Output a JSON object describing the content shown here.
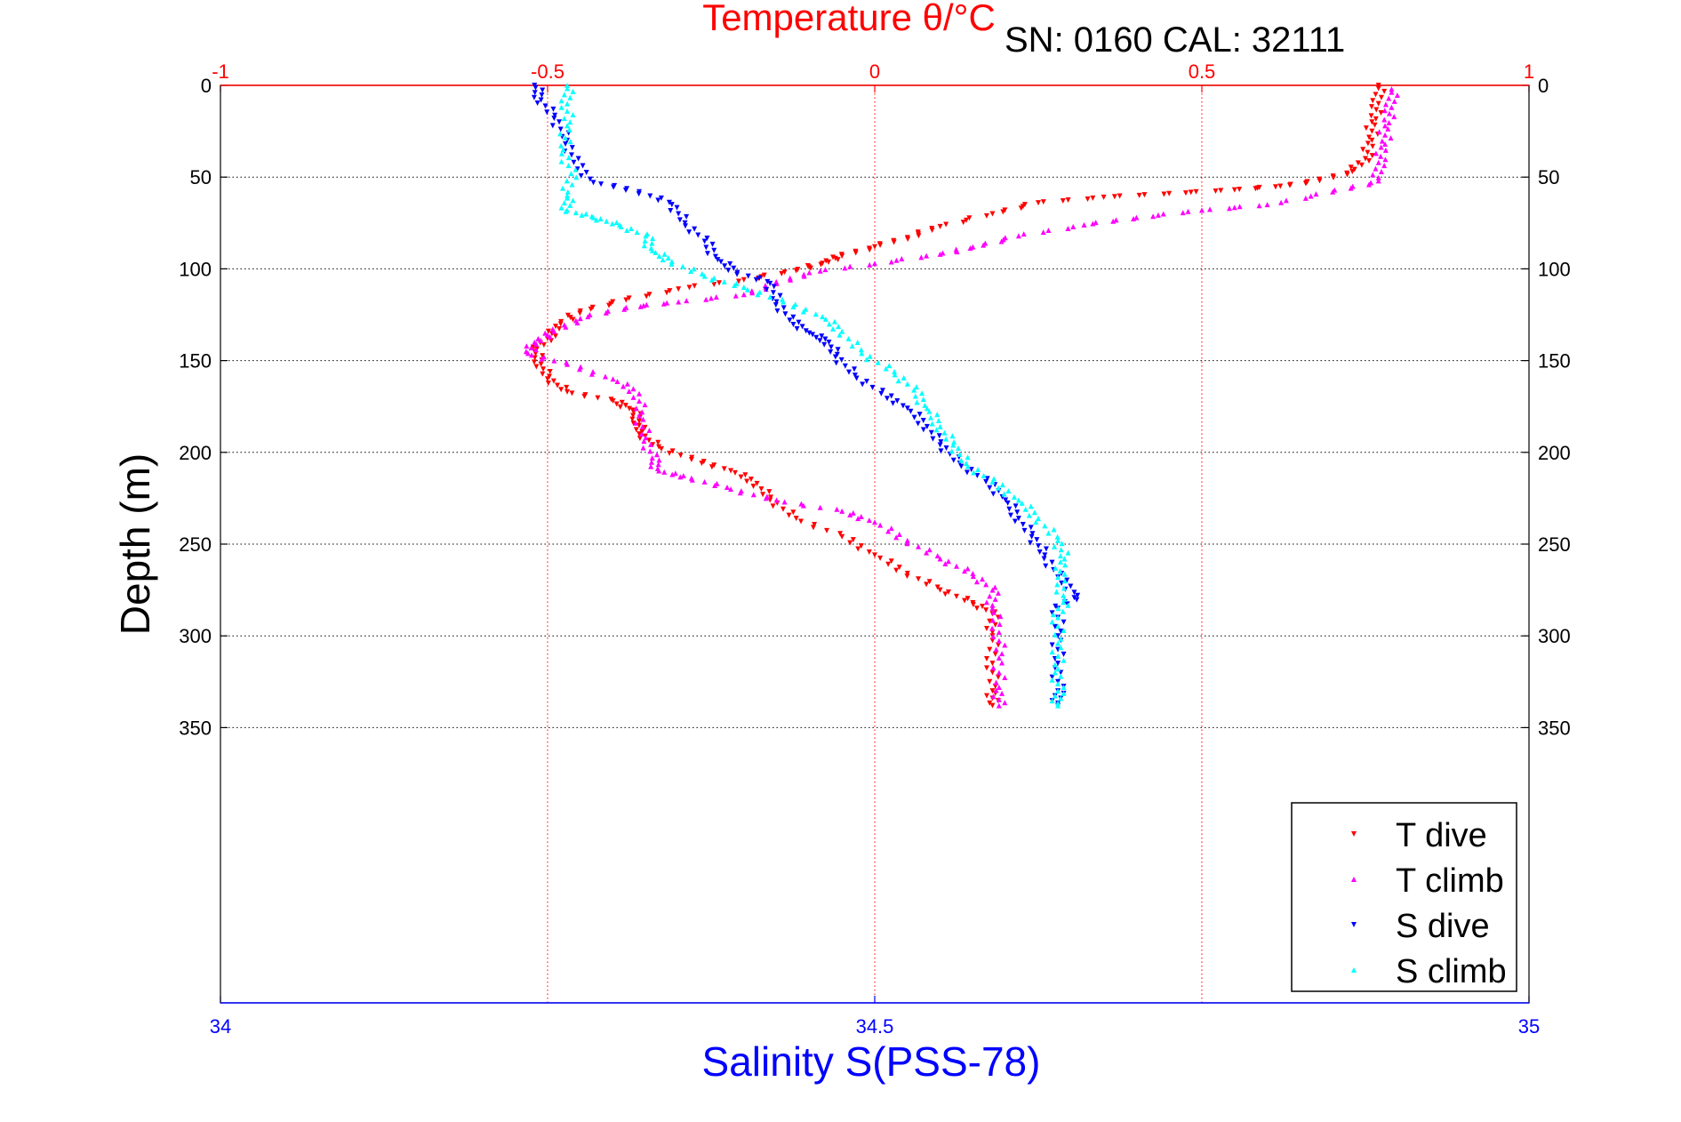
{
  "chart_data": {
    "type": "scatter",
    "title": "Temperature θ/°C",
    "subtitle": "SN: 0160  CAL: 32111",
    "top_axis": {
      "label": "Temperature θ/°C",
      "range": [
        -1,
        1
      ],
      "ticks": [
        -1,
        -0.5,
        0,
        0.5,
        1
      ],
      "tick_labels": [
        "-1",
        "-0.5",
        "0",
        "0.5",
        "1"
      ],
      "color": "#ff0000"
    },
    "bottom_axis": {
      "label": "Salinity S(PSS-78)",
      "range": [
        34,
        35
      ],
      "ticks": [
        34,
        34.5,
        35
      ],
      "tick_labels": [
        "34",
        "34.5",
        "35"
      ],
      "color": "#0000ff"
    },
    "y_axis": {
      "label": "Depth (m)",
      "range": [
        0,
        500
      ],
      "reversed": true,
      "ticks": [
        0,
        50,
        100,
        150,
        200,
        250,
        300,
        350
      ],
      "tick_labels": [
        "0",
        "50",
        "100",
        "150",
        "200",
        "250",
        "300",
        "350"
      ]
    },
    "grid": true,
    "legend_position": "bottom-right",
    "series": [
      {
        "name": "T dive",
        "axis": "top",
        "color": "#ff0000",
        "marker": "triangle-down",
        "points": [
          [
            0.77,
            0
          ],
          [
            0.77,
            10
          ],
          [
            0.76,
            20
          ],
          [
            0.76,
            30
          ],
          [
            0.75,
            40
          ],
          [
            0.73,
            47
          ],
          [
            0.68,
            52
          ],
          [
            0.62,
            55
          ],
          [
            0.55,
            57
          ],
          [
            0.45,
            59
          ],
          [
            0.35,
            61
          ],
          [
            0.25,
            64
          ],
          [
            0.18,
            70
          ],
          [
            0.1,
            77
          ],
          [
            0.05,
            83
          ],
          [
            0.0,
            88
          ],
          [
            -0.05,
            93
          ],
          [
            -0.08,
            97
          ],
          [
            -0.12,
            101
          ],
          [
            -0.2,
            106
          ],
          [
            -0.3,
            111
          ],
          [
            -0.38,
            117
          ],
          [
            -0.45,
            123
          ],
          [
            -0.48,
            130
          ],
          [
            -0.5,
            138
          ],
          [
            -0.52,
            145
          ],
          [
            -0.51,
            152
          ],
          [
            -0.5,
            160
          ],
          [
            -0.47,
            167
          ],
          [
            -0.4,
            172
          ],
          [
            -0.37,
            177
          ],
          [
            -0.36,
            183
          ],
          [
            -0.36,
            190
          ],
          [
            -0.33,
            197
          ],
          [
            -0.28,
            204
          ],
          [
            -0.22,
            210
          ],
          [
            -0.18,
            217
          ],
          [
            -0.16,
            226
          ],
          [
            -0.12,
            236
          ],
          [
            -0.05,
            246
          ],
          [
            0.0,
            256
          ],
          [
            0.05,
            266
          ],
          [
            0.1,
            275
          ],
          [
            0.15,
            282
          ],
          [
            0.18,
            288
          ],
          [
            0.18,
            300
          ],
          [
            0.18,
            315
          ],
          [
            0.18,
            330
          ],
          [
            0.18,
            338
          ]
        ]
      },
      {
        "name": "T climb",
        "axis": "top",
        "color": "#ff00ff",
        "marker": "triangle-up",
        "points": [
          [
            0.79,
            2
          ],
          [
            0.79,
            12
          ],
          [
            0.78,
            22
          ],
          [
            0.78,
            32
          ],
          [
            0.77,
            42
          ],
          [
            0.77,
            52
          ],
          [
            0.7,
            58
          ],
          [
            0.6,
            65
          ],
          [
            0.5,
            68
          ],
          [
            0.4,
            72
          ],
          [
            0.32,
            76
          ],
          [
            0.22,
            82
          ],
          [
            0.15,
            88
          ],
          [
            0.1,
            92
          ],
          [
            0.0,
            97
          ],
          [
            -0.1,
            102
          ],
          [
            -0.15,
            108
          ],
          [
            -0.2,
            114
          ],
          [
            -0.3,
            118
          ],
          [
            -0.38,
            121
          ],
          [
            -0.45,
            127
          ],
          [
            -0.49,
            134
          ],
          [
            -0.52,
            140
          ],
          [
            -0.53,
            146
          ],
          [
            -0.47,
            152
          ],
          [
            -0.4,
            160
          ],
          [
            -0.36,
            168
          ],
          [
            -0.36,
            180
          ],
          [
            -0.35,
            192
          ],
          [
            -0.34,
            203
          ],
          [
            -0.33,
            210
          ],
          [
            -0.28,
            214
          ],
          [
            -0.22,
            220
          ],
          [
            -0.15,
            226
          ],
          [
            -0.05,
            232
          ],
          [
            0.0,
            238
          ],
          [
            0.05,
            248
          ],
          [
            0.1,
            258
          ],
          [
            0.15,
            266
          ],
          [
            0.18,
            275
          ],
          [
            0.18,
            285
          ],
          [
            0.19,
            298
          ],
          [
            0.19,
            312
          ],
          [
            0.19,
            328
          ],
          [
            0.19,
            338
          ]
        ]
      },
      {
        "name": "S dive",
        "axis": "bottom",
        "color": "#0000ff",
        "marker": "triangle-down",
        "points": [
          [
            34.24,
            0
          ],
          [
            34.245,
            8
          ],
          [
            34.255,
            18
          ],
          [
            34.265,
            30
          ],
          [
            34.27,
            42
          ],
          [
            34.285,
            53
          ],
          [
            34.32,
            58
          ],
          [
            34.345,
            65
          ],
          [
            34.355,
            75
          ],
          [
            34.37,
            85
          ],
          [
            34.38,
            95
          ],
          [
            34.395,
            102
          ],
          [
            34.42,
            108
          ],
          [
            34.425,
            118
          ],
          [
            34.435,
            128
          ],
          [
            34.45,
            135
          ],
          [
            34.465,
            140
          ],
          [
            34.47,
            148
          ],
          [
            34.485,
            158
          ],
          [
            34.505,
            168
          ],
          [
            34.525,
            176
          ],
          [
            34.54,
            186
          ],
          [
            34.55,
            196
          ],
          [
            34.565,
            206
          ],
          [
            34.585,
            216
          ],
          [
            34.6,
            226
          ],
          [
            34.61,
            236
          ],
          [
            34.62,
            246
          ],
          [
            34.63,
            256
          ],
          [
            34.64,
            268
          ],
          [
            34.655,
            278
          ],
          [
            34.64,
            285
          ],
          [
            34.64,
            300
          ],
          [
            34.64,
            315
          ],
          [
            34.64,
            330
          ],
          [
            34.64,
            338
          ]
        ]
      },
      {
        "name": "S climb",
        "axis": "bottom",
        "color": "#00ffff",
        "marker": "triangle-up",
        "points": [
          [
            34.265,
            0
          ],
          [
            34.265,
            10
          ],
          [
            34.265,
            22
          ],
          [
            34.262,
            35
          ],
          [
            34.268,
            48
          ],
          [
            34.265,
            60
          ],
          [
            34.265,
            68
          ],
          [
            34.285,
            72
          ],
          [
            34.305,
            76
          ],
          [
            34.325,
            82
          ],
          [
            34.33,
            90
          ],
          [
            34.345,
            96
          ],
          [
            34.37,
            104
          ],
          [
            34.4,
            110
          ],
          [
            34.43,
            118
          ],
          [
            34.46,
            126
          ],
          [
            34.475,
            134
          ],
          [
            34.49,
            146
          ],
          [
            34.515,
            156
          ],
          [
            34.53,
            166
          ],
          [
            34.54,
            176
          ],
          [
            34.55,
            186
          ],
          [
            34.56,
            196
          ],
          [
            34.57,
            206
          ],
          [
            34.59,
            216
          ],
          [
            34.61,
            226
          ],
          [
            34.625,
            236
          ],
          [
            34.64,
            248
          ],
          [
            34.645,
            258
          ],
          [
            34.64,
            268
          ],
          [
            34.645,
            280
          ],
          [
            34.64,
            290
          ],
          [
            34.64,
            304
          ],
          [
            34.64,
            318
          ],
          [
            34.64,
            330
          ],
          [
            34.64,
            338
          ]
        ]
      }
    ]
  }
}
